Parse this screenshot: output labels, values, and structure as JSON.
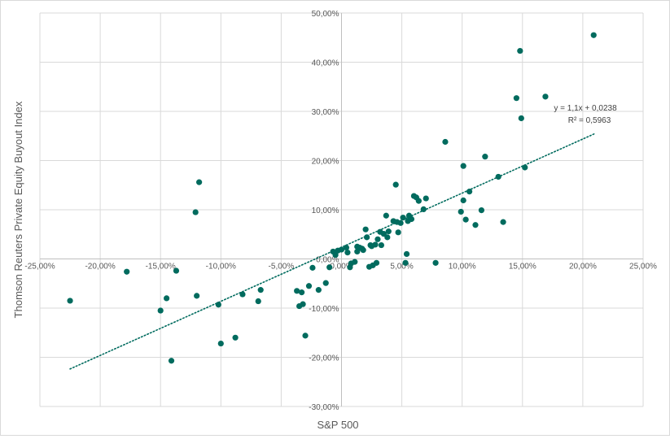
{
  "chart_data": {
    "type": "scatter",
    "title": "",
    "xlabel": "S&P 500",
    "ylabel": "Thomson Reuters Private Equity Buyout Index",
    "xlim": [
      -0.25,
      0.25
    ],
    "ylim": [
      -0.3,
      0.5
    ],
    "x_ticks": [
      -0.25,
      -0.2,
      -0.15,
      -0.1,
      -0.05,
      0.0,
      0.05,
      0.1,
      0.15,
      0.2,
      0.25
    ],
    "y_ticks": [
      -0.3,
      -0.2,
      -0.1,
      0.0,
      0.1,
      0.2,
      0.3,
      0.4,
      0.5
    ],
    "x_tick_labels": [
      "-25,00%",
      "-20,00%",
      "-15,00%",
      "-10,00%",
      "-5,00%",
      "0,00%",
      "5,00%",
      "10,00%",
      "15,00%",
      "20,00%",
      "25,00%"
    ],
    "y_tick_labels": [
      "-30,00%",
      "-20,00%",
      "-10,00%",
      "0,00%",
      "10,00%",
      "20,00%",
      "30,00%",
      "40,00%",
      "50,00%"
    ],
    "grid": true,
    "marker_color": "#006B5E",
    "trendline": {
      "type": "linear",
      "slope": 1.1,
      "intercept": 0.0238,
      "x_range": [
        -0.225,
        0.21
      ],
      "color": "#006B5E",
      "style": "dotted",
      "equation_label": "y = 1,1x + 0,0238",
      "r2_label": "R² = 0,5963"
    },
    "series": [
      {
        "points": [
          [
            -0.225,
            -0.085
          ],
          [
            -0.178,
            -0.026
          ],
          [
            -0.15,
            -0.105
          ],
          [
            -0.145,
            -0.08
          ],
          [
            -0.141,
            -0.207
          ],
          [
            -0.137,
            -0.024
          ],
          [
            -0.121,
            0.095
          ],
          [
            -0.12,
            -0.075
          ],
          [
            -0.118,
            0.156
          ],
          [
            -0.102,
            -0.093
          ],
          [
            -0.1,
            -0.172
          ],
          [
            -0.088,
            -0.16
          ],
          [
            -0.082,
            -0.072
          ],
          [
            -0.069,
            -0.086
          ],
          [
            -0.067,
            -0.063
          ],
          [
            -0.037,
            -0.065
          ],
          [
            -0.035,
            -0.096
          ],
          [
            -0.033,
            -0.068
          ],
          [
            -0.032,
            -0.092
          ],
          [
            -0.03,
            -0.156
          ],
          [
            -0.027,
            -0.055
          ],
          [
            -0.024,
            -0.018
          ],
          [
            -0.019,
            -0.063
          ],
          [
            -0.013,
            -0.049
          ],
          [
            -0.01,
            -0.017
          ],
          [
            -0.007,
            0.015
          ],
          [
            -0.005,
            0.008
          ],
          [
            -0.003,
            0.017
          ],
          [
            0.0,
            0.019
          ],
          [
            0.004,
            0.023
          ],
          [
            0.005,
            0.013
          ],
          [
            0.007,
            -0.017
          ],
          [
            0.008,
            -0.009
          ],
          [
            0.011,
            -0.006
          ],
          [
            0.013,
            0.015
          ],
          [
            0.013,
            0.025
          ],
          [
            0.015,
            0.023
          ],
          [
            0.017,
            0.021
          ],
          [
            0.018,
            0.018
          ],
          [
            0.02,
            0.06
          ],
          [
            0.021,
            0.044
          ],
          [
            0.023,
            -0.016
          ],
          [
            0.024,
            0.028
          ],
          [
            0.025,
            0.026
          ],
          [
            0.026,
            -0.013
          ],
          [
            0.028,
            0.029
          ],
          [
            0.029,
            -0.008
          ],
          [
            0.03,
            0.04
          ],
          [
            0.032,
            0.055
          ],
          [
            0.033,
            0.028
          ],
          [
            0.035,
            0.051
          ],
          [
            0.037,
            0.088
          ],
          [
            0.038,
            0.044
          ],
          [
            0.039,
            0.056
          ],
          [
            0.043,
            0.077
          ],
          [
            0.045,
            0.151
          ],
          [
            0.046,
            0.075
          ],
          [
            0.047,
            0.054
          ],
          [
            0.049,
            0.073
          ],
          [
            0.051,
            0.084
          ],
          [
            0.053,
            -0.008
          ],
          [
            0.054,
            0.01
          ],
          [
            0.055,
            0.077
          ],
          [
            0.056,
            0.088
          ],
          [
            0.058,
            0.081
          ],
          [
            0.06,
            0.128
          ],
          [
            0.062,
            0.125
          ],
          [
            0.064,
            0.118
          ],
          [
            0.068,
            0.101
          ],
          [
            0.07,
            0.123
          ],
          [
            0.078,
            -0.008
          ],
          [
            0.086,
            0.238
          ],
          [
            0.099,
            0.096
          ],
          [
            0.101,
            0.189
          ],
          [
            0.101,
            0.119
          ],
          [
            0.103,
            0.08
          ],
          [
            0.106,
            0.137
          ],
          [
            0.111,
            0.069
          ],
          [
            0.116,
            0.099
          ],
          [
            0.119,
            0.208
          ],
          [
            0.13,
            0.167
          ],
          [
            0.134,
            0.075
          ],
          [
            0.145,
            0.327
          ],
          [
            0.148,
            0.423
          ],
          [
            0.149,
            0.286
          ],
          [
            0.152,
            0.186
          ],
          [
            0.169,
            0.33
          ],
          [
            0.209,
            0.455
          ]
        ]
      }
    ]
  }
}
